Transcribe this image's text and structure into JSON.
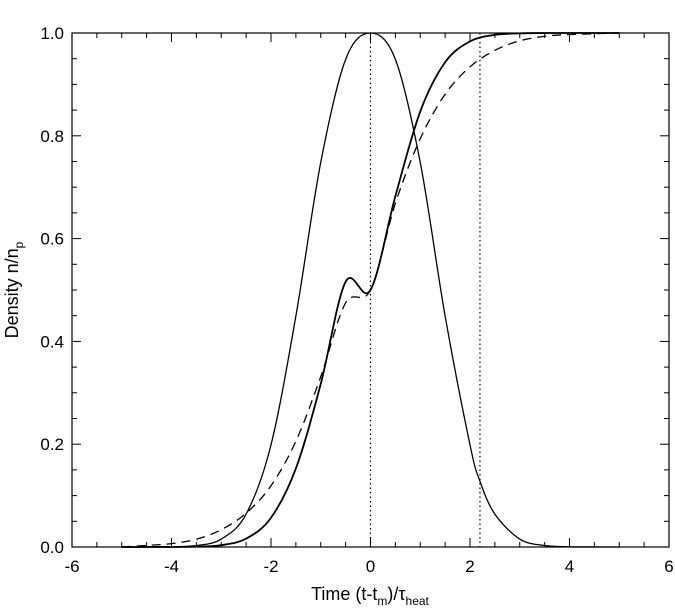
{
  "chart_data": {
    "type": "line",
    "xlabel": {
      "main": "Time (t-t",
      "sub1": "m",
      "mid": ")/τ",
      "sub2": "heat"
    },
    "ylabel": {
      "main": "Density n/n",
      "sub": "p"
    },
    "xlim": [
      -6,
      6
    ],
    "ylim": [
      0,
      1
    ],
    "xticks": [
      -6,
      -4,
      -2,
      0,
      2,
      4,
      6
    ],
    "xtick_labels": [
      "-6",
      "-4",
      "-2",
      "0",
      "2",
      "4",
      "6"
    ],
    "yticks": [
      0,
      0.2,
      0.4,
      0.6,
      0.8,
      1.0
    ],
    "ytick_labels": [
      "0.0",
      "0.2",
      "0.4",
      "0.6",
      "0.8",
      "1.0"
    ],
    "grid": false,
    "series": [
      {
        "style": "solid",
        "points": [
          [
            -5,
            0.0
          ],
          [
            -4.5,
            0.0001
          ],
          [
            -4,
            0.0004
          ],
          [
            -3.5,
            0.0029
          ],
          [
            -3,
            0.0155
          ],
          [
            -2.5,
            0.064
          ],
          [
            -2,
            0.1987
          ],
          [
            -1.5,
            0.4493
          ],
          [
            -1,
            0.7482
          ],
          [
            -0.5,
            0.9487
          ],
          [
            0,
            1.0
          ],
          [
            0.5,
            0.9487
          ],
          [
            1,
            0.7482
          ],
          [
            1.5,
            0.4493
          ],
          [
            2,
            0.1987
          ],
          [
            2.2,
            0.128
          ],
          [
            2.5,
            0.064
          ],
          [
            3,
            0.0155
          ],
          [
            3.5,
            0.0029
          ],
          [
            4,
            0.0004
          ],
          [
            4.5,
            0.0001
          ],
          [
            5,
            0.0
          ]
        ]
      },
      {
        "style": "solid",
        "points": [
          [
            -5,
            0.0
          ],
          [
            -4.5,
            0.0
          ],
          [
            -4,
            0.0001
          ],
          [
            -3.5,
            0.0007
          ],
          [
            -3,
            0.0036
          ],
          [
            -2.5,
            0.0163
          ],
          [
            -2,
            0.0569
          ],
          [
            -1.5,
            0.1528
          ],
          [
            -1,
            0.3174
          ],
          [
            -0.5,
            0.516
          ],
          [
            0,
            0.5
          ],
          [
            0.5,
            0.6826
          ],
          [
            1,
            0.8472
          ],
          [
            1.5,
            0.9431
          ],
          [
            2,
            0.9837
          ],
          [
            2.5,
            0.9964
          ],
          [
            3,
            0.9993
          ],
          [
            3.5,
            0.9999
          ],
          [
            4,
            1.0
          ],
          [
            5,
            1.0
          ]
        ]
      },
      {
        "style": "dashed",
        "points": [
          [
            -5,
            0.0
          ],
          [
            -4.5,
            0.003
          ],
          [
            -4,
            0.0065
          ],
          [
            -3.5,
            0.0152
          ],
          [
            -3,
            0.0337
          ],
          [
            -2.5,
            0.0658
          ],
          [
            -2,
            0.1192
          ],
          [
            -1.5,
            0.2058
          ],
          [
            -1,
            0.3314
          ],
          [
            -0.5,
            0.475
          ],
          [
            0,
            0.5
          ],
          [
            0.5,
            0.6686
          ],
          [
            1,
            0.7942
          ],
          [
            1.5,
            0.8808
          ],
          [
            2,
            0.9342
          ],
          [
            2.5,
            0.9663
          ],
          [
            3,
            0.9848
          ],
          [
            3.5,
            0.9935
          ],
          [
            4,
            0.997
          ],
          [
            5,
            1.0
          ]
        ]
      }
    ],
    "vlines": [
      {
        "x": 0,
        "style": "dotted"
      },
      {
        "x": 2.2,
        "style": "dotted"
      }
    ]
  }
}
